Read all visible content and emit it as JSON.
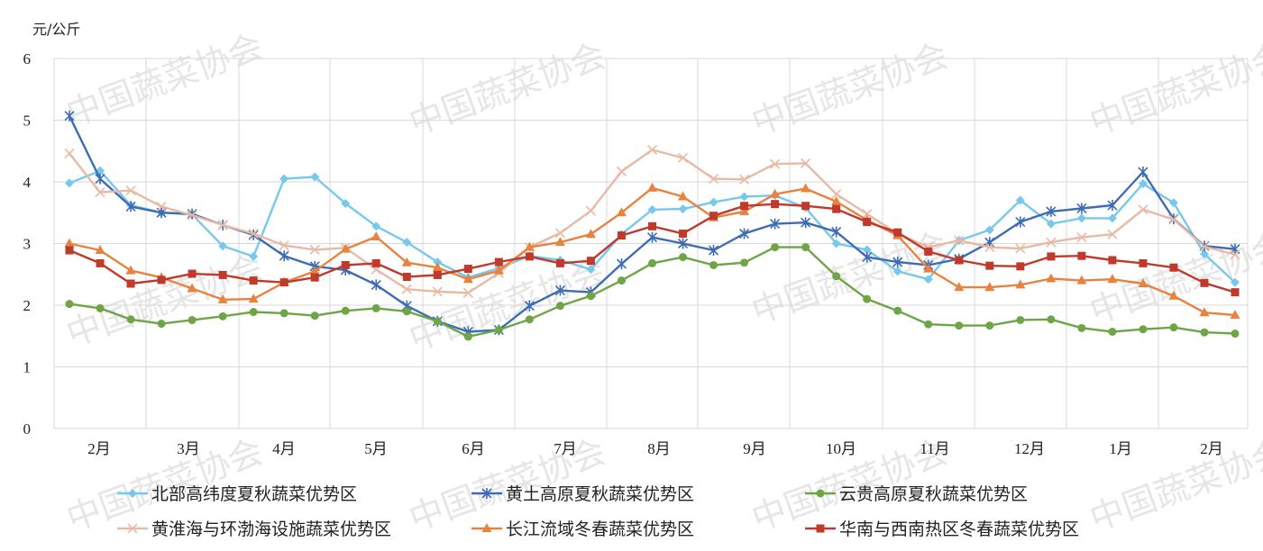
{
  "chart_data": {
    "type": "line",
    "ylabel": "元/公斤",
    "ylim": [
      0,
      6
    ],
    "yticks": [
      0,
      1,
      2,
      3,
      4,
      5,
      6
    ],
    "xticks": [
      "2月",
      "3月",
      "4月",
      "5月",
      "6月",
      "7月",
      "8月",
      "9月",
      "10月",
      "11月",
      "12月",
      "1月",
      "2月"
    ],
    "grid": "horizontal and vertical",
    "legend_position": "bottom",
    "watermark": "中国蔬菜协会",
    "series": [
      {
        "name": "北部高纬度夏秋蔬菜优势区",
        "color": "#78c8ee",
        "marker": "diamond",
        "values": [
          3.98,
          4.18,
          3.62,
          3.5,
          3.47,
          2.96,
          2.79,
          4.05,
          4.08,
          3.65,
          3.28,
          3.02,
          2.7,
          2.45,
          2.6,
          2.8,
          2.73,
          2.58,
          3.15,
          3.55,
          3.56,
          3.67,
          3.76,
          3.78,
          3.58,
          3.0,
          2.9,
          2.55,
          2.42,
          3.05,
          3.22,
          3.7,
          3.32,
          3.41,
          3.41,
          3.97,
          3.66,
          2.83,
          2.37
        ]
      },
      {
        "name": "黄土高原夏秋蔬菜优势区",
        "color": "#3e6cb4",
        "marker": "asterisk",
        "values": [
          5.07,
          4.05,
          3.6,
          3.5,
          3.48,
          3.3,
          3.14,
          2.8,
          2.63,
          2.57,
          2.33,
          1.99,
          1.74,
          1.57,
          1.6,
          1.99,
          2.24,
          2.21,
          2.67,
          3.1,
          3.0,
          2.89,
          3.16,
          3.32,
          3.34,
          3.19,
          2.78,
          2.7,
          2.65,
          2.75,
          3.02,
          3.35,
          3.52,
          3.57,
          3.62,
          4.16,
          3.4,
          2.96,
          2.91
        ]
      },
      {
        "name": "云贵高原夏秋蔬菜优势区",
        "color": "#6ea647",
        "marker": "circle",
        "values": [
          2.02,
          1.95,
          1.77,
          1.7,
          1.76,
          1.82,
          1.89,
          1.87,
          1.83,
          1.91,
          1.95,
          1.9,
          1.74,
          1.49,
          1.6,
          1.77,
          1.99,
          2.15,
          2.4,
          2.68,
          2.78,
          2.65,
          2.69,
          2.94,
          2.94,
          2.47,
          2.1,
          1.91,
          1.69,
          1.67,
          1.67,
          1.76,
          1.77,
          1.63,
          1.57,
          1.61,
          1.64,
          1.56,
          1.54
        ]
      },
      {
        "name": "黄淮海与环渤海设施蔬菜优势区",
        "color": "#e8b9a5",
        "marker": "x",
        "values": [
          4.46,
          3.83,
          3.86,
          3.6,
          3.46,
          3.3,
          3.16,
          2.97,
          2.9,
          2.93,
          2.58,
          2.26,
          2.22,
          2.2,
          2.52,
          2.94,
          3.17,
          3.53,
          4.17,
          4.52,
          4.39,
          4.05,
          4.04,
          4.29,
          4.3,
          3.8,
          3.48,
          3.16,
          2.94,
          3.05,
          2.94,
          2.92,
          3.02,
          3.1,
          3.15,
          3.55,
          3.39,
          2.95,
          2.82
        ]
      },
      {
        "name": "长江流域冬春蔬菜优势区",
        "color": "#e8823f",
        "marker": "triangle",
        "values": [
          3.0,
          2.89,
          2.56,
          2.45,
          2.27,
          2.09,
          2.1,
          2.37,
          2.55,
          2.91,
          3.11,
          2.69,
          2.61,
          2.42,
          2.56,
          2.94,
          3.02,
          3.15,
          3.5,
          3.9,
          3.76,
          3.42,
          3.52,
          3.8,
          3.89,
          3.68,
          3.38,
          3.13,
          2.59,
          2.29,
          2.29,
          2.33,
          2.43,
          2.4,
          2.42,
          2.35,
          2.15,
          1.88,
          1.84
        ]
      },
      {
        "name": "华南与西南热区冬春蔬菜优势区",
        "color": "#c0392b",
        "marker": "square",
        "values": [
          2.89,
          2.68,
          2.35,
          2.41,
          2.51,
          2.49,
          2.4,
          2.37,
          2.45,
          2.65,
          2.68,
          2.46,
          2.49,
          2.59,
          2.7,
          2.79,
          2.68,
          2.72,
          3.13,
          3.28,
          3.16,
          3.45,
          3.61,
          3.64,
          3.61,
          3.56,
          3.35,
          3.18,
          2.87,
          2.73,
          2.64,
          2.63,
          2.79,
          2.8,
          2.73,
          2.68,
          2.61,
          2.36,
          2.21
        ]
      }
    ]
  }
}
